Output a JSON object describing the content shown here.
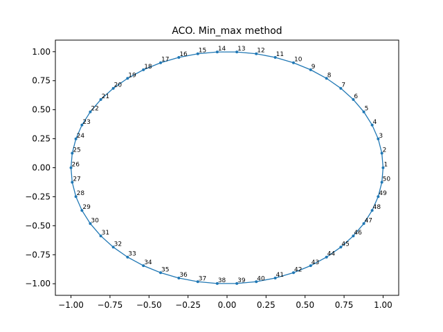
{
  "chart_data": {
    "type": "line",
    "title": "ACO. Min_max method",
    "xlabel": "",
    "ylabel": "",
    "xlim": [
      -1.1,
      1.1
    ],
    "ylim": [
      -1.1,
      1.1
    ],
    "xticks": [
      "−1.00",
      "−0.75",
      "−0.50",
      "−0.25",
      "0.00",
      "0.25",
      "0.50",
      "0.75",
      "1.00"
    ],
    "yticks": [
      "−1.00",
      "−0.75",
      "−0.50",
      "−0.25",
      "0.00",
      "0.25",
      "0.50",
      "0.75",
      "1.00"
    ],
    "grid": false,
    "line_color": "#1f77b4",
    "closed": true,
    "points": [
      {
        "label": "1",
        "x": 1.0,
        "y": 0.0
      },
      {
        "label": "2",
        "x": 0.9921,
        "y": 0.1253
      },
      {
        "label": "3",
        "x": 0.9686,
        "y": 0.2487
      },
      {
        "label": "4",
        "x": 0.9298,
        "y": 0.3681
      },
      {
        "label": "5",
        "x": 0.8763,
        "y": 0.4818
      },
      {
        "label": "6",
        "x": 0.809,
        "y": 0.5878
      },
      {
        "label": "7",
        "x": 0.729,
        "y": 0.6845
      },
      {
        "label": "8",
        "x": 0.6374,
        "y": 0.7705
      },
      {
        "label": "9",
        "x": 0.5358,
        "y": 0.8443
      },
      {
        "label": "10",
        "x": 0.4258,
        "y": 0.9048
      },
      {
        "label": "11",
        "x": 0.309,
        "y": 0.9511
      },
      {
        "label": "12",
        "x": 0.1874,
        "y": 0.9823
      },
      {
        "label": "13",
        "x": 0.0628,
        "y": 0.998
      },
      {
        "label": "14",
        "x": -0.0628,
        "y": 0.998
      },
      {
        "label": "15",
        "x": -0.1874,
        "y": 0.9823
      },
      {
        "label": "16",
        "x": -0.309,
        "y": 0.9511
      },
      {
        "label": "17",
        "x": -0.4258,
        "y": 0.9048
      },
      {
        "label": "18",
        "x": -0.5358,
        "y": 0.8443
      },
      {
        "label": "19",
        "x": -0.6374,
        "y": 0.7705
      },
      {
        "label": "20",
        "x": -0.729,
        "y": 0.6845
      },
      {
        "label": "21",
        "x": -0.809,
        "y": 0.5878
      },
      {
        "label": "22",
        "x": -0.8763,
        "y": 0.4818
      },
      {
        "label": "23",
        "x": -0.9298,
        "y": 0.3681
      },
      {
        "label": "24",
        "x": -0.9686,
        "y": 0.2487
      },
      {
        "label": "25",
        "x": -0.9921,
        "y": 0.1253
      },
      {
        "label": "26",
        "x": -1.0,
        "y": 0.0
      },
      {
        "label": "27",
        "x": -0.9921,
        "y": -0.1253
      },
      {
        "label": "28",
        "x": -0.9686,
        "y": -0.2487
      },
      {
        "label": "29",
        "x": -0.9298,
        "y": -0.3681
      },
      {
        "label": "30",
        "x": -0.8763,
        "y": -0.4818
      },
      {
        "label": "31",
        "x": -0.809,
        "y": -0.5878
      },
      {
        "label": "32",
        "x": -0.729,
        "y": -0.6845
      },
      {
        "label": "33",
        "x": -0.6374,
        "y": -0.7705
      },
      {
        "label": "34",
        "x": -0.5358,
        "y": -0.8443
      },
      {
        "label": "35",
        "x": -0.4258,
        "y": -0.9048
      },
      {
        "label": "36",
        "x": -0.309,
        "y": -0.9511
      },
      {
        "label": "37",
        "x": -0.1874,
        "y": -0.9823
      },
      {
        "label": "38",
        "x": -0.0628,
        "y": -0.998
      },
      {
        "label": "39",
        "x": 0.0628,
        "y": -0.998
      },
      {
        "label": "40",
        "x": 0.1874,
        "y": -0.9823
      },
      {
        "label": "41",
        "x": 0.309,
        "y": -0.9511
      },
      {
        "label": "42",
        "x": 0.4258,
        "y": -0.9048
      },
      {
        "label": "43",
        "x": 0.5358,
        "y": -0.8443
      },
      {
        "label": "44",
        "x": 0.6374,
        "y": -0.7705
      },
      {
        "label": "45",
        "x": 0.729,
        "y": -0.6845
      },
      {
        "label": "46",
        "x": 0.809,
        "y": -0.5878
      },
      {
        "label": "47",
        "x": 0.8763,
        "y": -0.4818
      },
      {
        "label": "48",
        "x": 0.9298,
        "y": -0.3681
      },
      {
        "label": "49",
        "x": 0.9686,
        "y": -0.2487
      },
      {
        "label": "50",
        "x": 0.9921,
        "y": -0.1253
      }
    ]
  }
}
